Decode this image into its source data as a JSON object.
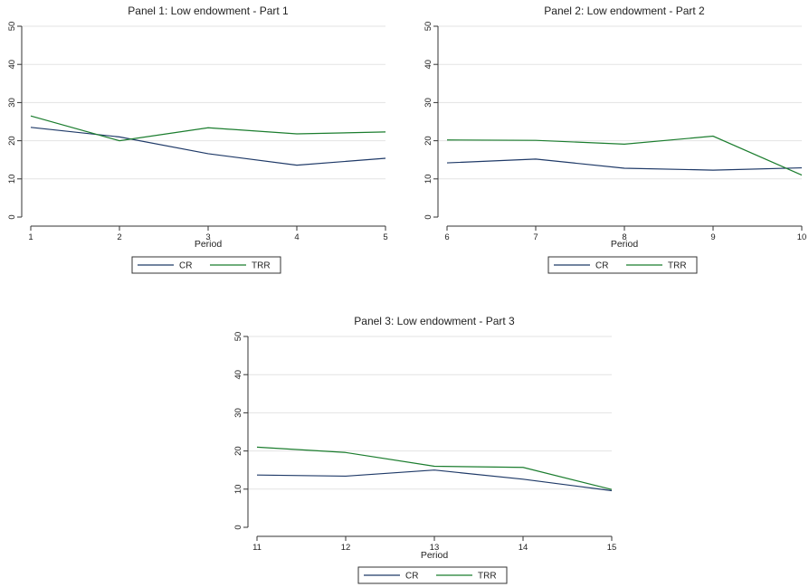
{
  "colors": {
    "CR": "#1f3a68",
    "TRR": "#1b7d2e"
  },
  "chart_data": [
    {
      "type": "line",
      "title": "Panel 1: Low endowment - Part 1",
      "xlabel": "Period",
      "ylabel": "",
      "x": [
        1,
        2,
        3,
        4,
        5
      ],
      "ylim": [
        0,
        50
      ],
      "yticks": [
        0,
        10,
        20,
        30,
        40,
        50
      ],
      "grid": true,
      "legend": "bottom",
      "series": [
        {
          "name": "CR",
          "values": [
            23.5,
            21.0,
            16.6,
            13.6,
            15.4
          ]
        },
        {
          "name": "TRR",
          "values": [
            26.5,
            20.0,
            23.4,
            21.8,
            22.3
          ]
        }
      ]
    },
    {
      "type": "line",
      "title": "Panel 2: Low endowment - Part 2",
      "xlabel": "Period",
      "ylabel": "",
      "x": [
        6,
        7,
        8,
        9,
        10
      ],
      "ylim": [
        0,
        50
      ],
      "yticks": [
        0,
        10,
        20,
        30,
        40,
        50
      ],
      "grid": true,
      "legend": "bottom",
      "series": [
        {
          "name": "CR",
          "values": [
            14.2,
            15.2,
            12.8,
            12.3,
            12.9
          ]
        },
        {
          "name": "TRR",
          "values": [
            20.2,
            20.1,
            19.1,
            21.2,
            11.0
          ]
        }
      ]
    },
    {
      "type": "line",
      "title": "Panel 3: Low endowment - Part 3",
      "xlabel": "Period",
      "ylabel": "",
      "x": [
        11,
        12,
        13,
        14,
        15
      ],
      "ylim": [
        0,
        50
      ],
      "yticks": [
        0,
        10,
        20,
        30,
        40,
        50
      ],
      "grid": true,
      "legend": "bottom",
      "series": [
        {
          "name": "CR",
          "values": [
            13.7,
            13.4,
            15.0,
            12.6,
            9.6
          ]
        },
        {
          "name": "TRR",
          "values": [
            21.0,
            19.6,
            16.0,
            15.7,
            9.9
          ]
        }
      ]
    }
  ]
}
